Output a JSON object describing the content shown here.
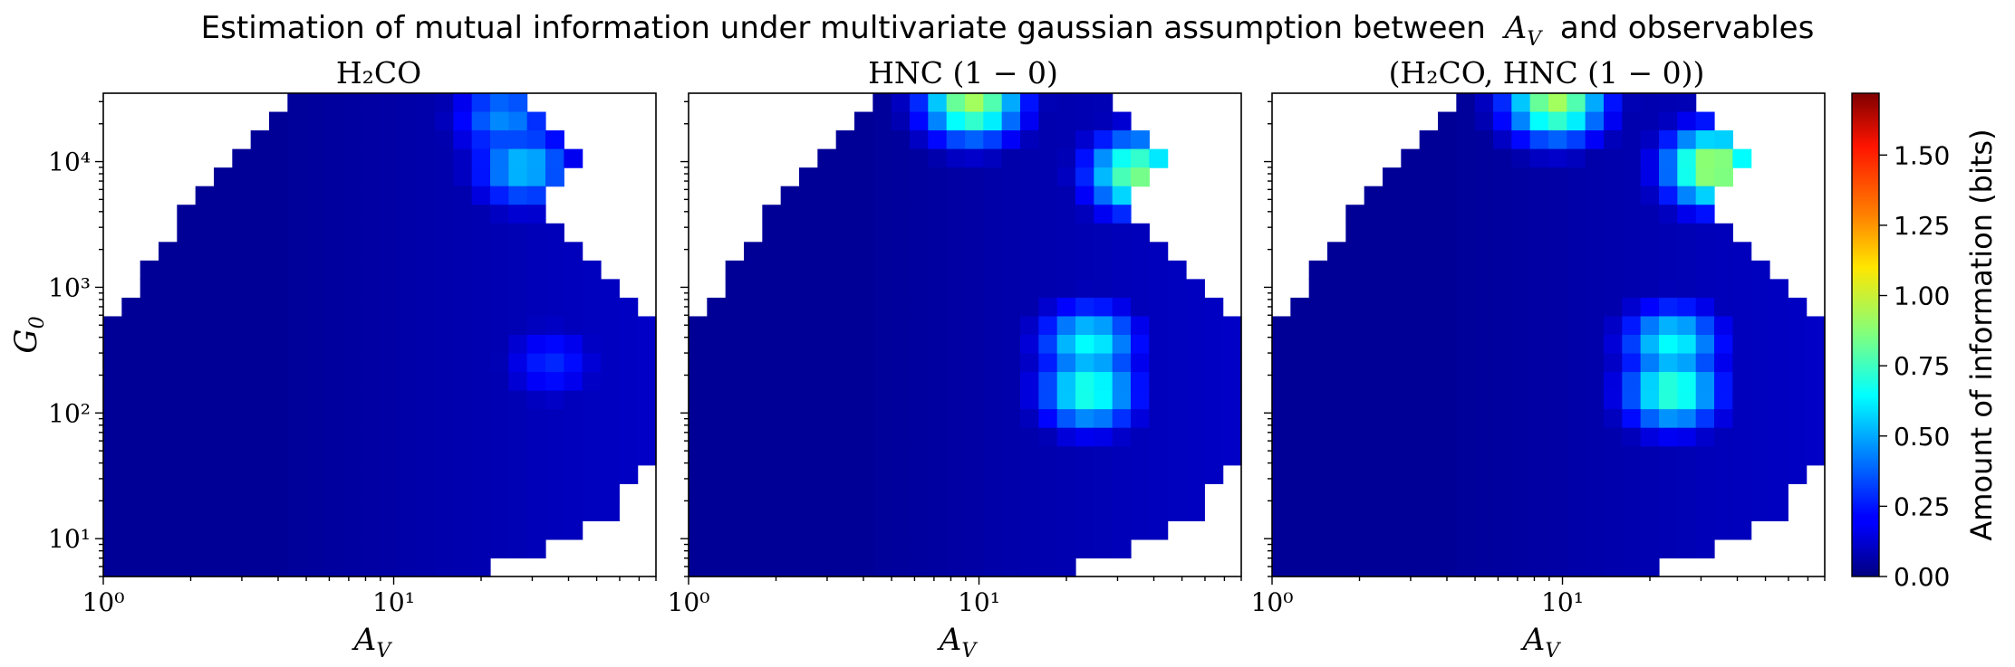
{
  "figure": {
    "suptitle_prefix": "Estimation of mutual information under multivariate gaussian assumption between",
    "suptitle_var": "A",
    "suptitle_var_sub": "V",
    "suptitle_suffix": "and observables"
  },
  "colorbar": {
    "label": "Amount of information (bits)",
    "ticks": [
      "0.00",
      "0.25",
      "0.50",
      "0.75",
      "1.00",
      "1.25",
      "1.50"
    ],
    "range": [
      0.0,
      1.72
    ],
    "colormap": "jet"
  },
  "chart_data": [
    {
      "type": "heatmap",
      "title": "H₂CO",
      "xlabel": "A_V",
      "ylabel": "G_0",
      "x_scale": "log",
      "y_scale": "log",
      "xlim": [
        1,
        80
      ],
      "ylim": [
        5,
        35000
      ],
      "x_tick_labels": [
        "10⁰",
        "10¹"
      ],
      "y_tick_labels": [
        "10¹",
        "10²",
        "10³",
        "10⁴"
      ],
      "peaks": [
        {
          "AV": 28,
          "G0": 9000,
          "value": 0.55
        },
        {
          "AV": 24,
          "G0": 22000,
          "value": 0.45
        },
        {
          "AV": 35,
          "G0": 250,
          "value": 0.28
        }
      ]
    },
    {
      "type": "heatmap",
      "title": "HNC (1 − 0)",
      "xlabel": "A_V",
      "ylabel": "",
      "x_scale": "log",
      "y_scale": "log",
      "xlim": [
        1,
        80
      ],
      "ylim": [
        5,
        35000
      ],
      "x_tick_labels": [
        "10⁰",
        "10¹"
      ],
      "y_tick_labels": [],
      "peaks": [
        {
          "AV": 9.5,
          "G0": 30000,
          "value": 0.92
        },
        {
          "AV": 35,
          "G0": 8000,
          "value": 0.85
        },
        {
          "AV": 24,
          "G0": 150,
          "value": 0.72
        },
        {
          "AV": 24,
          "G0": 350,
          "value": 0.65
        }
      ]
    },
    {
      "type": "heatmap",
      "title": "(H₂CO, HNC (1 − 0))",
      "xlabel": "A_V",
      "ylabel": "",
      "x_scale": "log",
      "y_scale": "log",
      "xlim": [
        1,
        80
      ],
      "ylim": [
        5,
        35000
      ],
      "x_tick_labels": [
        "10⁰",
        "10¹"
      ],
      "y_tick_labels": [],
      "peaks": [
        {
          "AV": 9.5,
          "G0": 30000,
          "value": 0.92
        },
        {
          "AV": 33,
          "G0": 9000,
          "value": 0.95
        },
        {
          "AV": 24,
          "G0": 150,
          "value": 0.75
        },
        {
          "AV": 24,
          "G0": 350,
          "value": 0.65
        }
      ]
    }
  ]
}
